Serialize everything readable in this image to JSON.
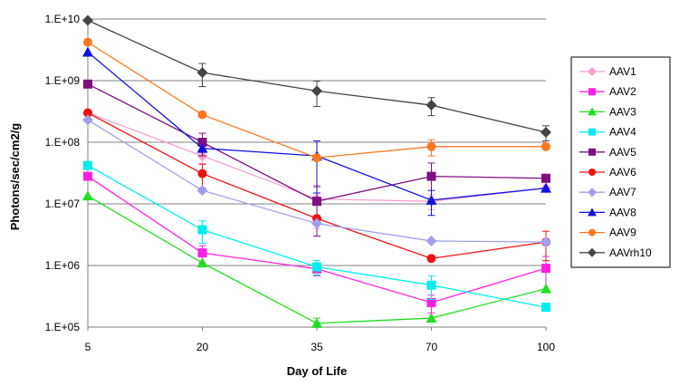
{
  "chart_data": {
    "type": "line",
    "title": "",
    "xlabel": "Day of Life",
    "ylabel": "Photons/sec/cm2/g",
    "yscale": "log",
    "ylim": [
      100000,
      10000000000
    ],
    "y_ticks": [
      {
        "value": 100000,
        "label": "1.E+05"
      },
      {
        "value": 1000000,
        "label": "1.E+06"
      },
      {
        "value": 10000000,
        "label": "1.E+07"
      },
      {
        "value": 100000000,
        "label": "1.E+08"
      },
      {
        "value": 1000000000,
        "label": "1.E+09"
      },
      {
        "value": 10000000000,
        "label": "1.E+10"
      }
    ],
    "categories": [
      "5",
      "20",
      "35",
      "70",
      "100"
    ],
    "grid": true,
    "legend_position": "right",
    "series": [
      {
        "name": "AAV1",
        "color": "#f4a1d2",
        "marker": "diamond",
        "values": [
          300000000,
          60000000,
          12000000,
          11000000,
          18000000
        ],
        "errors": [
          0,
          15000000,
          8000000,
          3000000,
          0
        ]
      },
      {
        "name": "AAV2",
        "color": "#ff1fe0",
        "marker": "square",
        "values": [
          28000000,
          1600000,
          880000,
          250000,
          900000
        ],
        "errors": [
          0,
          500000,
          200000,
          80000,
          500000
        ]
      },
      {
        "name": "AAV3",
        "color": "#22dd22",
        "marker": "triangle",
        "values": [
          13500000,
          1100000,
          115000,
          140000,
          420000
        ],
        "errors": [
          0,
          0,
          25000,
          0,
          0
        ]
      },
      {
        "name": "AAV4",
        "color": "#00eeee",
        "marker": "square",
        "values": [
          42000000,
          3800000,
          950000,
          480000,
          210000
        ],
        "errors": [
          0,
          1500000,
          250000,
          200000,
          0
        ]
      },
      {
        "name": "AAV5",
        "color": "#801080",
        "marker": "square",
        "values": [
          880000000,
          100000000,
          11000000,
          28000000,
          26000000
        ],
        "errors": [
          0,
          40000000,
          8000000,
          18000000,
          0
        ]
      },
      {
        "name": "AAV6",
        "color": "#ee1111",
        "marker": "circle",
        "values": [
          300000000,
          31000000,
          5800000,
          1300000,
          2400000
        ],
        "errors": [
          0,
          13000000,
          0,
          0,
          1200000
        ]
      },
      {
        "name": "AAV7",
        "color": "#a0a0ee",
        "marker": "diamond",
        "values": [
          230000000,
          16500000,
          4800000,
          2500000,
          2400000
        ],
        "errors": [
          0,
          0,
          0,
          0,
          0
        ]
      },
      {
        "name": "AAV8",
        "color": "#1111dd",
        "marker": "triangle",
        "values": [
          2900000000,
          80000000,
          60000000,
          11500000,
          18000000
        ],
        "errors": [
          0,
          0,
          45000000,
          5000000,
          0
        ]
      },
      {
        "name": "AAV9",
        "color": "#ff7722",
        "marker": "circle",
        "values": [
          4200000000,
          280000000,
          56000000,
          85000000,
          85000000
        ],
        "errors": [
          0,
          0,
          0,
          25000000,
          0
        ]
      },
      {
        "name": "AAVrh10",
        "color": "#444444",
        "marker": "diamond",
        "values": [
          9500000000,
          1350000000,
          680000000,
          400000000,
          145000000
        ],
        "errors": [
          0,
          550000000,
          300000000,
          130000000,
          40000000
        ]
      }
    ]
  }
}
